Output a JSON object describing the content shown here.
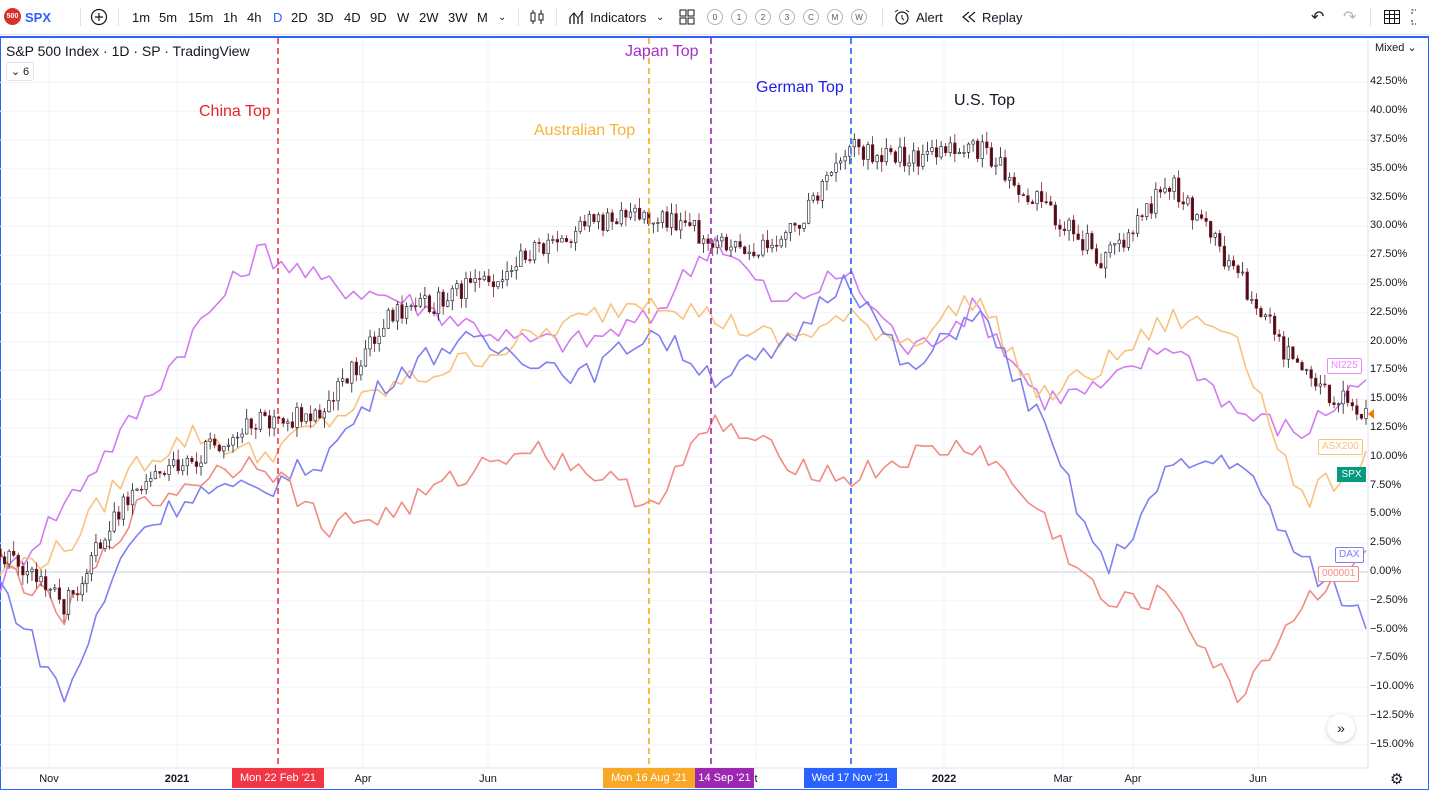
{
  "toolbar": {
    "symbol_badge": "500",
    "symbol": "SPX",
    "intervals": [
      "1m",
      "5m",
      "15m",
      "1h",
      "4h",
      "D",
      "2D",
      "3D",
      "4D",
      "9D",
      "W",
      "2W",
      "3W",
      "M"
    ],
    "active_interval": "D",
    "indicators_label": "Indicators",
    "layout_slots": [
      "0",
      "1",
      "2",
      "3",
      "C",
      "M",
      "W"
    ],
    "alert_label": "Alert",
    "replay_label": "Replay"
  },
  "legend": {
    "title": "S&P 500 Index · 1D · SP · TradingView",
    "collapse_count": "6"
  },
  "scale_mode": "Mixed",
  "price_axis": [
    "42.50%",
    "40.00%",
    "37.50%",
    "35.00%",
    "32.50%",
    "30.00%",
    "27.50%",
    "25.00%",
    "22.50%",
    "20.00%",
    "17.50%",
    "15.00%",
    "12.50%",
    "10.00%",
    "7.50%",
    "5.00%",
    "2.50%",
    "0.00%",
    "−2.50%",
    "−5.00%",
    "−7.50%",
    "−10.00%",
    "−12.50%",
    "−15.00%"
  ],
  "time_axis": [
    {
      "label": "Nov",
      "bold": false
    },
    {
      "label": "2021",
      "bold": true
    },
    {
      "label": "Apr",
      "bold": false
    },
    {
      "label": "Jun",
      "bold": false
    },
    {
      "label": "t",
      "bold": false
    },
    {
      "label": "2022",
      "bold": true
    },
    {
      "label": "Mar",
      "bold": false
    },
    {
      "label": "Apr",
      "bold": false
    },
    {
      "label": "Jun",
      "bold": false
    }
  ],
  "date_markers": [
    {
      "label": "Mon 22 Feb '21",
      "color": "#f23645"
    },
    {
      "label": "Mon 16 Aug '21",
      "color": "#f9a825"
    },
    {
      "label": "14 Sep '21",
      "color": "#9c27b0"
    },
    {
      "label": "Wed 17 Nov '21",
      "color": "#2962ff"
    }
  ],
  "annotations": [
    {
      "text": "China Top",
      "color": "#e8212b"
    },
    {
      "text": "Australian Top",
      "color": "#f9b233"
    },
    {
      "text": "Japan Top",
      "color": "#a431c4"
    },
    {
      "text": "German Top",
      "color": "#1f1fe0"
    },
    {
      "text": "U.S. Top",
      "color": "#131722"
    }
  ],
  "series_tags": [
    {
      "name": "NI225",
      "color": "#e68af5"
    },
    {
      "name": "ASX200",
      "color": "#f7c27a"
    },
    {
      "name": "SPX",
      "color": "#089981"
    },
    {
      "name": "DAX",
      "color": "#7b7ff0"
    },
    {
      "name": "000001",
      "color": "#f48b84"
    }
  ],
  "chart_data": {
    "type": "line",
    "title": "S&P 500 Index · 1D · SP · TradingView",
    "yunit": "%",
    "ylim": [
      -16,
      44
    ],
    "x": [
      "2020-10-14",
      "2020-11-15",
      "2020-12-15",
      "2021-01-15",
      "2021-02-15",
      "2021-03-15",
      "2021-04-15",
      "2021-05-15",
      "2021-06-15",
      "2021-07-15",
      "2021-08-15",
      "2021-09-15",
      "2021-10-15",
      "2021-11-15",
      "2021-12-15",
      "2022-01-15",
      "2022-02-15",
      "2022-03-15",
      "2022-04-15",
      "2022-05-15",
      "2022-06-15",
      "2022-07-15"
    ],
    "series": [
      {
        "name": "SPX",
        "color": "#131722",
        "values": [
          2,
          -3,
          7,
          10,
          13,
          14,
          22,
          24,
          27,
          30,
          31,
          29,
          28,
          37,
          36,
          37,
          32,
          27,
          34,
          26,
          17,
          14
        ]
      },
      {
        "name": "NI225",
        "color": "#d17cf1",
        "values": [
          -1,
          6,
          13,
          21,
          28,
          25,
          24,
          22,
          20,
          20,
          22,
          29,
          23,
          26,
          19,
          23,
          15,
          16,
          20,
          14,
          12,
          17
        ]
      },
      {
        "name": "ASX200",
        "color": "#f9c27f",
        "values": [
          0,
          2,
          9,
          12,
          10,
          13,
          16,
          18,
          20,
          22,
          24,
          22,
          20,
          22,
          20,
          24,
          15,
          18,
          22,
          21,
          6,
          10
        ]
      },
      {
        "name": "DAX",
        "color": "#7f7ff2",
        "values": [
          -1,
          -11,
          3,
          7,
          7,
          10,
          17,
          20,
          19,
          17,
          21,
          17,
          19,
          26,
          17,
          23,
          13,
          0,
          9,
          10,
          1,
          -4
        ]
      },
      {
        "name": "000001",
        "color": "#f28b82",
        "values": [
          1,
          -4,
          5,
          8,
          10,
          4,
          5,
          8,
          11,
          9,
          6,
          13,
          10,
          8,
          10,
          11,
          5,
          -3,
          -2,
          -11,
          -3,
          2
        ]
      }
    ]
  }
}
